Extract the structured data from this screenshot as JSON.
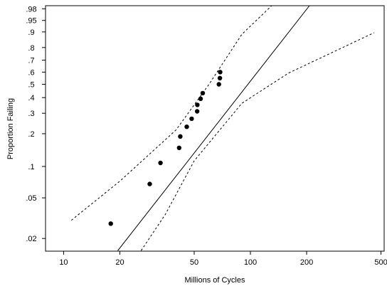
{
  "chart_data": {
    "type": "scatter",
    "title": "",
    "xlabel": "Millions of Cycles",
    "ylabel": "Proportion Failing",
    "x_scale": "log",
    "y_scale": "probability",
    "xlim": [
      8,
      520
    ],
    "ylim": [
      0.015,
      0.985
    ],
    "x_ticks": [
      10,
      20,
      50,
      100,
      200,
      500
    ],
    "x_tick_labels": [
      "10",
      "20",
      "50",
      "100",
      "200",
      "500"
    ],
    "y_ticks": [
      0.02,
      0.05,
      0.1,
      0.2,
      0.3,
      0.4,
      0.5,
      0.6,
      0.7,
      0.8,
      0.9,
      0.95,
      0.98
    ],
    "y_tick_labels": [
      ".02",
      ".05",
      ".1",
      ".2",
      ".3",
      ".4",
      ".5",
      ".6",
      ".7",
      ".8",
      ".9",
      ".95",
      ".98"
    ],
    "grid": false,
    "legend": "none",
    "points": [
      {
        "x": 17.88,
        "y": 0.028
      },
      {
        "x": 28.92,
        "y": 0.068
      },
      {
        "x": 33.0,
        "y": 0.108
      },
      {
        "x": 41.52,
        "y": 0.149
      },
      {
        "x": 42.12,
        "y": 0.189
      },
      {
        "x": 45.6,
        "y": 0.23
      },
      {
        "x": 48.48,
        "y": 0.27
      },
      {
        "x": 51.84,
        "y": 0.311
      },
      {
        "x": 51.96,
        "y": 0.351
      },
      {
        "x": 54.12,
        "y": 0.392
      },
      {
        "x": 55.56,
        "y": 0.432
      },
      {
        "x": 67.8,
        "y": 0.5
      },
      {
        "x": 68.64,
        "y": 0.55
      },
      {
        "x": 68.88,
        "y": 0.6
      }
    ],
    "fit_line": [
      {
        "x": 19.5,
        "y": 0.0152
      },
      {
        "x": 207,
        "y": 0.985
      }
    ],
    "ci_upper": [
      {
        "x": 11.0,
        "y": 0.0302
      },
      {
        "x": 20.0,
        "y": 0.0725
      },
      {
        "x": 40.0,
        "y": 0.216
      },
      {
        "x": 60.0,
        "y": 0.5
      },
      {
        "x": 90.0,
        "y": 0.887
      },
      {
        "x": 130.0,
        "y": 0.985
      }
    ],
    "ci_lower": [
      {
        "x": 26.0,
        "y": 0.0152
      },
      {
        "x": 35.0,
        "y": 0.0344
      },
      {
        "x": 50.0,
        "y": 0.113
      },
      {
        "x": 90.0,
        "y": 0.361
      },
      {
        "x": 160.0,
        "y": 0.592
      },
      {
        "x": 460.0,
        "y": 0.896
      }
    ],
    "colors": {
      "marker": "#000000",
      "line": "#000000",
      "ci": "#000000",
      "frame": "#000000"
    }
  }
}
